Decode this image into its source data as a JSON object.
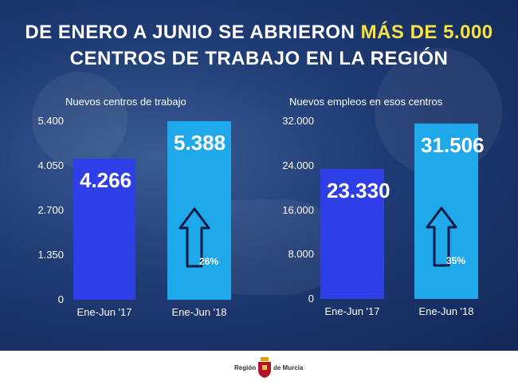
{
  "title": {
    "line1_prefix": "DE ENERO A JUNIO SE ABRIERON ",
    "line1_highlight": "MÁS DE 5.000",
    "line2": "CENTROS DE TRABAJO EN LA REGIÓN",
    "highlight_color": "#f6e24a"
  },
  "chart_data": [
    {
      "type": "bar",
      "title": "Nuevos centros de trabajo",
      "categories": [
        "Ene-Jun '17",
        "Ene-Jun '18"
      ],
      "values": [
        4266,
        5388
      ],
      "value_labels": [
        "4.266",
        "5.388"
      ],
      "ylim": [
        0,
        5400
      ],
      "yticks": [
        "0",
        "1.350",
        "2.700",
        "4.050",
        "5.400"
      ],
      "annotation": "26%",
      "bar_colors": [
        "#2f3fe8",
        "#1fa9ea"
      ],
      "grid": false
    },
    {
      "type": "bar",
      "title": "Nuevos empleos en esos centros",
      "categories": [
        "Ene-Jun '17",
        "Ene-Jun '18"
      ],
      "values": [
        23330,
        31506
      ],
      "value_labels": [
        "23.330",
        "31.506"
      ],
      "ylim": [
        0,
        32000
      ],
      "yticks": [
        "0",
        "8.000",
        "16.000",
        "24.000",
        "32.000"
      ],
      "annotation": "35%",
      "bar_colors": [
        "#2f3fe8",
        "#1fa9ea"
      ],
      "grid": false
    }
  ],
  "footer": {
    "logo_left": "Región",
    "logo_right": "de Murcia"
  },
  "icons": {
    "growth": "up-arrow-icon",
    "crest": "coat-of-arms-icon"
  }
}
